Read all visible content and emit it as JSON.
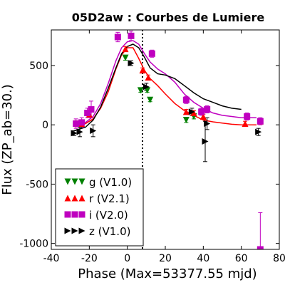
{
  "chart_data": {
    "type": "scatter",
    "title": "05D2aw : Courbes de Lumiere",
    "xlabel": "Phase (Max=53377.55 mjd)",
    "ylabel": "Flux (ZP_ab=30.)",
    "xlim": [
      -40,
      80
    ],
    "ylim": [
      -1050,
      800
    ],
    "xticks": [
      -40,
      -20,
      0,
      20,
      40,
      60,
      80
    ],
    "xtick_labels": [
      "-40",
      "-20",
      "0",
      "20",
      "40",
      "60",
      "80"
    ],
    "yticks": [
      -1000,
      -500,
      0,
      500
    ],
    "ytick_labels": [
      "-1000",
      "-500",
      "0",
      "500"
    ],
    "max_phase_line": 8,
    "legend_position": "lower-left",
    "series": [
      {
        "name": "g (V1.0)",
        "color": "#008000",
        "marker": "triangle-down",
        "points": [
          {
            "x": 7,
            "y": 290,
            "err": 15
          },
          {
            "x": 10.5,
            "y": 290,
            "err": 15
          },
          {
            "x": 12,
            "y": 210,
            "err": 15
          },
          {
            "x": 31,
            "y": 40,
            "err": 20
          },
          {
            "x": 35,
            "y": 70,
            "err": 20
          },
          {
            "x": -1,
            "y": 565,
            "err": 20
          }
        ],
        "curve": null
      },
      {
        "name": "r (V2.1)",
        "color": "#ff0000",
        "marker": "triangle-up",
        "points": [
          {
            "x": -27,
            "y": 10,
            "err": 25
          },
          {
            "x": -24,
            "y": 10,
            "err": 25
          },
          {
            "x": -20,
            "y": 90,
            "err": 25
          },
          {
            "x": -1,
            "y": 640,
            "err": 20
          },
          {
            "x": 8,
            "y": 460,
            "err": 20
          },
          {
            "x": 11,
            "y": 400,
            "err": 20
          },
          {
            "x": 31,
            "y": 110,
            "err": 20
          },
          {
            "x": 35,
            "y": 100,
            "err": 20
          },
          {
            "x": 40,
            "y": 70,
            "err": 20
          },
          {
            "x": 62,
            "y": 10,
            "err": 20
          },
          {
            "x": 70,
            "y": 30,
            "err": 20
          }
        ],
        "curve": {
          "x": [
            -28,
            -22,
            -18,
            -14,
            -10,
            -6,
            -3,
            0,
            3,
            6,
            9,
            12,
            16,
            20,
            25,
            30,
            35,
            40,
            45,
            50,
            55,
            60,
            65,
            68
          ],
          "y": [
            -10,
            10,
            50,
            140,
            280,
            470,
            590,
            650,
            650,
            560,
            460,
            390,
            330,
            260,
            180,
            120,
            80,
            40,
            25,
            15,
            5,
            0,
            0,
            0
          ]
        }
      },
      {
        "name": "i (V2.0)",
        "color": "#bf00bf",
        "marker": "square",
        "points": [
          {
            "x": -27,
            "y": 10,
            "err": 40
          },
          {
            "x": -24,
            "y": 20,
            "err": 40
          },
          {
            "x": -21,
            "y": 100,
            "err": 40
          },
          {
            "x": -19,
            "y": 130,
            "err": 70
          },
          {
            "x": -5,
            "y": 740,
            "err": 40
          },
          {
            "x": 2,
            "y": 750,
            "err": 40
          },
          {
            "x": 13,
            "y": 600,
            "err": 30
          },
          {
            "x": 31,
            "y": 210,
            "err": 30
          },
          {
            "x": 39,
            "y": 110,
            "err": 30
          },
          {
            "x": 42,
            "y": 130,
            "err": 30
          },
          {
            "x": 63,
            "y": 70,
            "err": 30
          },
          {
            "x": 70,
            "y": 30,
            "err": 30
          },
          {
            "x": 70,
            "y": -1050,
            "err": 310
          }
        ],
        "curve": {
          "x": [
            -28,
            -22,
            -18,
            -14,
            -10,
            -6,
            -3,
            0,
            3,
            6,
            9,
            12,
            16,
            20,
            25,
            30,
            35,
            40,
            45,
            50,
            55,
            60,
            65,
            68
          ],
          "y": [
            0,
            20,
            70,
            180,
            350,
            540,
            650,
            700,
            710,
            680,
            600,
            530,
            470,
            430,
            360,
            260,
            190,
            140,
            100,
            80,
            70,
            60,
            60,
            60
          ]
        }
      },
      {
        "name": "z (V1.0)",
        "color": "#000000",
        "marker": "triangle-right",
        "points": [
          {
            "x": -28,
            "y": -70,
            "err": 20
          },
          {
            "x": -25,
            "y": -60,
            "err": 40
          },
          {
            "x": -18,
            "y": -50,
            "err": 50
          },
          {
            "x": 2,
            "y": 520,
            "err": 20
          },
          {
            "x": 10,
            "y": 320,
            "err": 30
          },
          {
            "x": 34,
            "y": 110,
            "err": 30
          },
          {
            "x": 41,
            "y": -140,
            "err": 170
          },
          {
            "x": 42,
            "y": 10,
            "err": 50
          },
          {
            "x": 69,
            "y": -60,
            "err": 30
          }
        ],
        "curve": {
          "x": [
            -28,
            -22,
            -18,
            -14,
            -10,
            -6,
            -3,
            0,
            3,
            6,
            9,
            12,
            16,
            20,
            25,
            30,
            35,
            40,
            45,
            50,
            55,
            60
          ],
          "y": [
            -50,
            -20,
            40,
            150,
            310,
            480,
            600,
            660,
            680,
            650,
            570,
            480,
            430,
            420,
            390,
            330,
            270,
            220,
            190,
            160,
            140,
            130
          ]
        }
      }
    ]
  }
}
